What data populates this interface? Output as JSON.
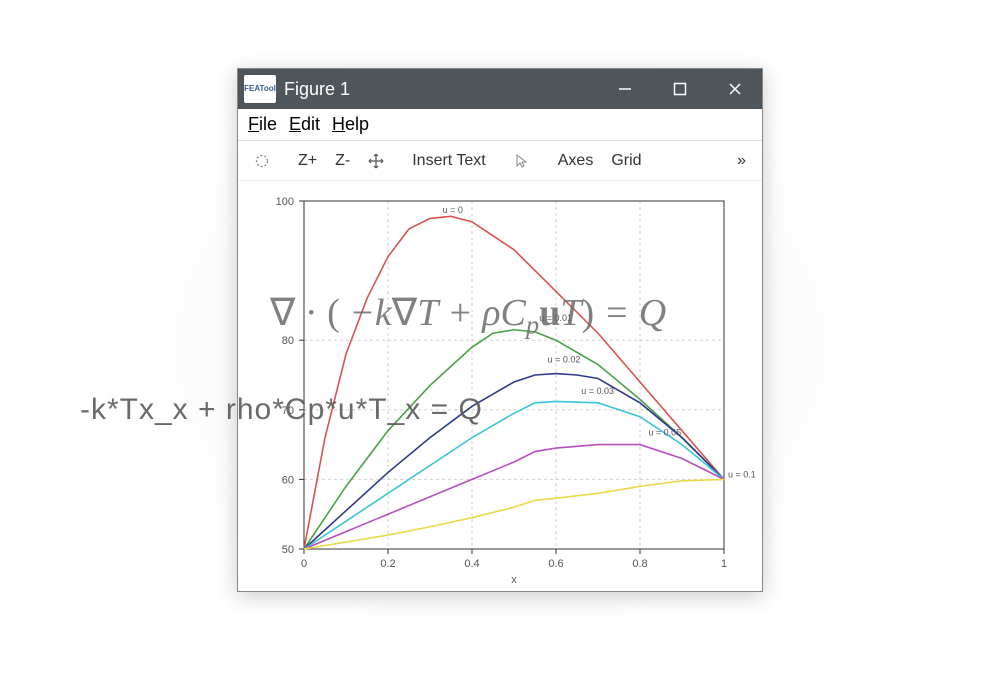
{
  "window": {
    "app_name": "FEATool",
    "title": "Figure 1",
    "titlebar_bg": "#4e555b",
    "titlebar_fg": "#ffffff"
  },
  "menubar": {
    "items": [
      {
        "label": "File",
        "accel": "F"
      },
      {
        "label": "Edit",
        "accel": "E"
      },
      {
        "label": "Help",
        "accel": "H"
      }
    ]
  },
  "toolbar": {
    "zoom_in": "Z+",
    "zoom_out": "Z-",
    "insert_text": "Insert Text",
    "axes": "Axes",
    "grid": "Grid",
    "overflow": "»"
  },
  "chart": {
    "type": "line",
    "xlabel": "x",
    "xlim": [
      0,
      1
    ],
    "ylim": [
      50,
      100
    ],
    "xticks": [
      0,
      0.2,
      0.4,
      0.6,
      0.8,
      1
    ],
    "yticks": [
      50,
      60,
      70,
      80,
      100
    ],
    "grid_color": "#d0d0d0",
    "axis_color": "#333333",
    "background": "#ffffff",
    "tick_fontsize": 11,
    "label_fontsize": 11,
    "series": [
      {
        "name": "u=0",
        "label": "u = 0",
        "color": "#d9534f",
        "label_x": 0.33,
        "label_y": 98,
        "x": [
          0,
          0.05,
          0.1,
          0.15,
          0.2,
          0.25,
          0.3,
          0.35,
          0.4,
          0.45,
          0.5,
          0.6,
          0.7,
          0.8,
          0.9,
          1.0
        ],
        "y": [
          50,
          66,
          78,
          86,
          92,
          96,
          97.5,
          97.8,
          97,
          95,
          93,
          87,
          81,
          74,
          67,
          60
        ]
      },
      {
        "name": "u=0.01",
        "label": "u = 0.01",
        "color": "#4aa24a",
        "label_x": 0.56,
        "label_y": 82.5,
        "x": [
          0,
          0.1,
          0.2,
          0.3,
          0.4,
          0.45,
          0.5,
          0.55,
          0.6,
          0.7,
          0.8,
          0.9,
          1.0
        ],
        "y": [
          50,
          59,
          67,
          73.5,
          79,
          81,
          81.5,
          81.2,
          80,
          76.5,
          71.5,
          66,
          60
        ]
      },
      {
        "name": "u=0.02",
        "label": "u = 0.02",
        "color": "#2e3a8c",
        "label_x": 0.58,
        "label_y": 76.5,
        "x": [
          0,
          0.1,
          0.2,
          0.3,
          0.4,
          0.5,
          0.55,
          0.6,
          0.65,
          0.7,
          0.8,
          0.9,
          1.0
        ],
        "y": [
          50,
          55.5,
          61,
          66,
          70.5,
          74,
          75,
          75.2,
          75,
          74.5,
          71,
          66,
          60
        ]
      },
      {
        "name": "u=0.03",
        "label": "u = 0.03",
        "color": "#3ac5d8",
        "label_x": 0.66,
        "label_y": 72,
        "x": [
          0,
          0.1,
          0.2,
          0.3,
          0.4,
          0.5,
          0.55,
          0.6,
          0.7,
          0.8,
          0.9,
          1.0
        ],
        "y": [
          50,
          54,
          58,
          62,
          66,
          69.5,
          71,
          71.2,
          71,
          69,
          65,
          60
        ]
      },
      {
        "name": "u=0.05",
        "label": "u = 0.05",
        "color": "#b84fc0",
        "label_x": 0.82,
        "label_y": 66,
        "x": [
          0,
          0.1,
          0.2,
          0.3,
          0.4,
          0.5,
          0.55,
          0.6,
          0.7,
          0.8,
          0.9,
          1.0
        ],
        "y": [
          50,
          52.5,
          55,
          57.5,
          60,
          62.5,
          64,
          64.5,
          65,
          65,
          63,
          60
        ]
      },
      {
        "name": "u=0.1",
        "label": "u = 0.1",
        "color": "#e8d84a",
        "label_x": 1.03,
        "label_y": 60,
        "x": [
          0,
          0.1,
          0.2,
          0.3,
          0.4,
          0.5,
          0.55,
          0.6,
          0.7,
          0.8,
          0.9,
          1.0
        ],
        "y": [
          50,
          51,
          52,
          53.2,
          54.5,
          56,
          57,
          57.3,
          58,
          59,
          59.8,
          60
        ]
      }
    ]
  },
  "equations": {
    "plain_text": "-k*Tx_x + rho*Cp*u*T_x = Q"
  }
}
